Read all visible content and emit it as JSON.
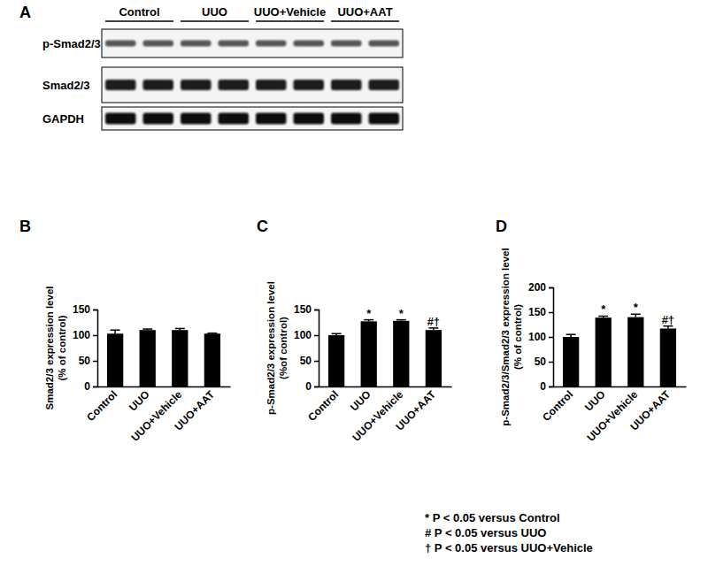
{
  "panel_a": {
    "title": "A",
    "groups": [
      "Control",
      "UUO",
      "UUO+Vehicle",
      "UUO+AAT"
    ],
    "rows": [
      "p-Smad2/3",
      "Smad2/3",
      "GAPDH"
    ]
  },
  "chart_data": [
    {
      "type": "bar",
      "title": "B",
      "y_label": [
        "Smad2/3 expression level",
        "(% of control)"
      ],
      "categories": [
        "Control",
        "UUO",
        "UUO+Vehicle",
        "UUO+AAT"
      ],
      "values": [
        103,
        110,
        110,
        103
      ],
      "errors": [
        7,
        2,
        3,
        1
      ],
      "color": "#000000",
      "ylim": [
        0,
        150
      ],
      "yticks": [
        0,
        50,
        100,
        150
      ]
    },
    {
      "type": "bar",
      "title": "C",
      "y_label": [
        "p-Smad2/3 expression level",
        "(%of control)"
      ],
      "categories": [
        "Control",
        "UUO",
        "UUO+Vehicle",
        "UUO+AAT"
      ],
      "values": [
        100,
        127,
        128,
        110
      ],
      "errors": [
        3,
        3,
        2,
        4
      ],
      "annotations": [
        null,
        "*",
        "*",
        "#†"
      ],
      "color": "#000000",
      "ylim": [
        0,
        150
      ],
      "yticks": [
        0,
        50,
        100,
        150
      ]
    },
    {
      "type": "bar",
      "title": "D",
      "y_label": [
        "p-Smad2/3/Smad2/3 expression level",
        "(% of control)"
      ],
      "categories": [
        "Control",
        "UUO",
        "UUO+Vehicle",
        "UUO+AAT"
      ],
      "values": [
        100,
        139,
        140,
        117
      ],
      "errors": [
        5,
        3,
        6,
        5
      ],
      "annotations": [
        null,
        "*",
        "*",
        "#†"
      ],
      "color": "#000000",
      "ylim": [
        0,
        200
      ],
      "yticks": [
        0,
        50,
        100,
        150,
        200
      ]
    }
  ],
  "footnotes": [
    "* P < 0.05 versus Control",
    "# P < 0.05 versus UUO",
    "† P < 0.05 versus UUO+Vehicle"
  ]
}
